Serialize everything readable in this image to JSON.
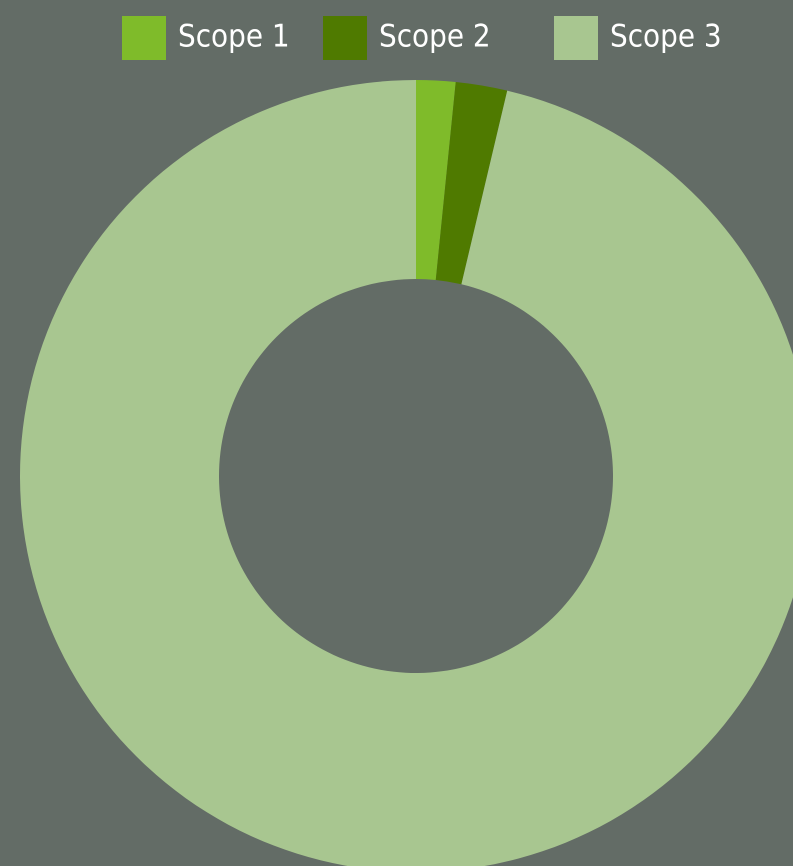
{
  "chart_data": {
    "type": "donut",
    "categories": [
      "Scope 1",
      "Scope 2",
      "Scope 3"
    ],
    "values": [
      1.6,
      2.1,
      96.3
    ],
    "colors": [
      "#7fbb2a",
      "#4f7a00",
      "#a8c690"
    ],
    "legend": "top"
  }
}
